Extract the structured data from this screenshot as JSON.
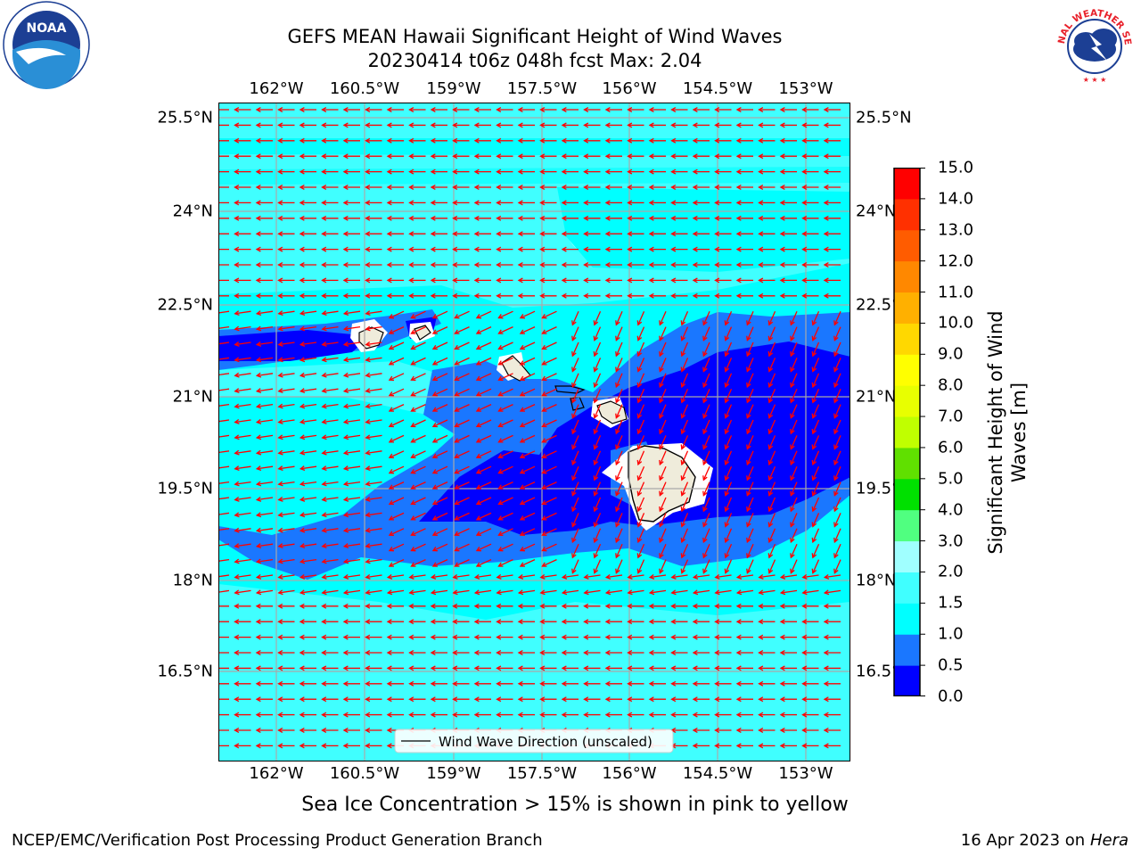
{
  "title": {
    "line1": "GEFS MEAN Hawaii Significant Height of Wind Waves",
    "line2": "20230414 t06z 048h fcst   Max: 2.04"
  },
  "map": {
    "lon_labels": [
      "162°W",
      "160.5°W",
      "159°W",
      "157.5°W",
      "156°W",
      "154.5°W",
      "153°W"
    ],
    "lat_labels": [
      "25.5°N",
      "24°N",
      "22.5°N",
      "21°N",
      "19.5°N",
      "18°N",
      "16.5°N"
    ],
    "lon_values": [
      -162,
      -160.5,
      -159,
      -157.5,
      -156,
      -154.5,
      -153
    ],
    "lat_values": [
      25.5,
      24,
      22.5,
      21,
      19.5,
      18,
      16.5
    ],
    "lon_range": [
      -163.0,
      -152.2
    ],
    "lat_range": [
      15.0,
      25.7
    ],
    "legend_label": "Wind Wave Direction (unscaled)",
    "arrow_color": "#ff0000",
    "land_color": "#efecdb",
    "grid_color": "#a9a9a9"
  },
  "colorbar": {
    "title": "Significant Height of Wind Waves [m]",
    "tick_labels": [
      "0.0",
      "0.5",
      "1.0",
      "1.5",
      "2.0",
      "3.0",
      "4.0",
      "5.0",
      "6.0",
      "7.0",
      "8.0",
      "9.0",
      "10.0",
      "11.0",
      "12.0",
      "13.0",
      "14.0",
      "15.0"
    ],
    "colors": [
      "#0000ff",
      "#1a77ff",
      "#00ffff",
      "#40ffff",
      "#a0ffff",
      "#50ff80",
      "#00e000",
      "#60e000",
      "#c0ff00",
      "#e8ff00",
      "#ffff00",
      "#ffd800",
      "#ffb000",
      "#ff8800",
      "#ff5c00",
      "#ff3000",
      "#ff0000"
    ]
  },
  "footer": {
    "note": "Sea Ice Concentration > 15% is shown in pink to yellow",
    "credit": "NCEP/EMC/Verification Post Processing Product Generation Branch",
    "date": "16 Apr 2023 on ",
    "machine": "Hera"
  },
  "logos": {
    "noaa_text": "NOAA",
    "nws_text": "NATIONAL WEATHER SERVICE"
  }
}
